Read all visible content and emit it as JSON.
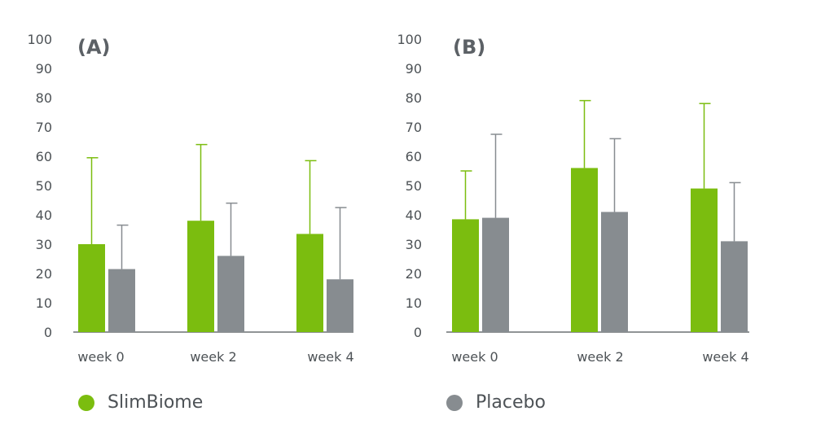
{
  "colors": {
    "slimbiome": "#7bbd0f",
    "placebo": "#878c90",
    "axis": "#6b7074",
    "text": "#4d5256"
  },
  "legend": [
    {
      "name": "SlimBiome",
      "color": "#7bbd0f"
    },
    {
      "name": "Placebo",
      "color": "#878c90"
    }
  ],
  "chart_data": [
    {
      "type": "bar",
      "panel_label": "(A)",
      "categories": [
        "week 0",
        "week 2",
        "week 4"
      ],
      "ylim": [
        0,
        100
      ],
      "yticks": [
        0,
        10,
        20,
        30,
        40,
        50,
        60,
        70,
        80,
        90,
        100
      ],
      "grid": false,
      "series": [
        {
          "name": "SlimBiome",
          "values": [
            30,
            38,
            33.5
          ],
          "error_upper": [
            59.5,
            64,
            58.5
          ]
        },
        {
          "name": "Placebo",
          "values": [
            21.5,
            26,
            18
          ],
          "error_upper": [
            36.5,
            44,
            42.5
          ]
        }
      ]
    },
    {
      "type": "bar",
      "panel_label": "(B)",
      "categories": [
        "week 0",
        "week 2",
        "week 4"
      ],
      "ylim": [
        0,
        100
      ],
      "yticks": [
        0,
        10,
        20,
        30,
        40,
        50,
        60,
        70,
        80,
        90,
        100
      ],
      "grid": false,
      "series": [
        {
          "name": "SlimBiome",
          "values": [
            38.5,
            56,
            49
          ],
          "error_upper": [
            55,
            79,
            78
          ]
        },
        {
          "name": "Placebo",
          "values": [
            39,
            41,
            31
          ],
          "error_upper": [
            67.5,
            66,
            51
          ]
        }
      ]
    }
  ]
}
